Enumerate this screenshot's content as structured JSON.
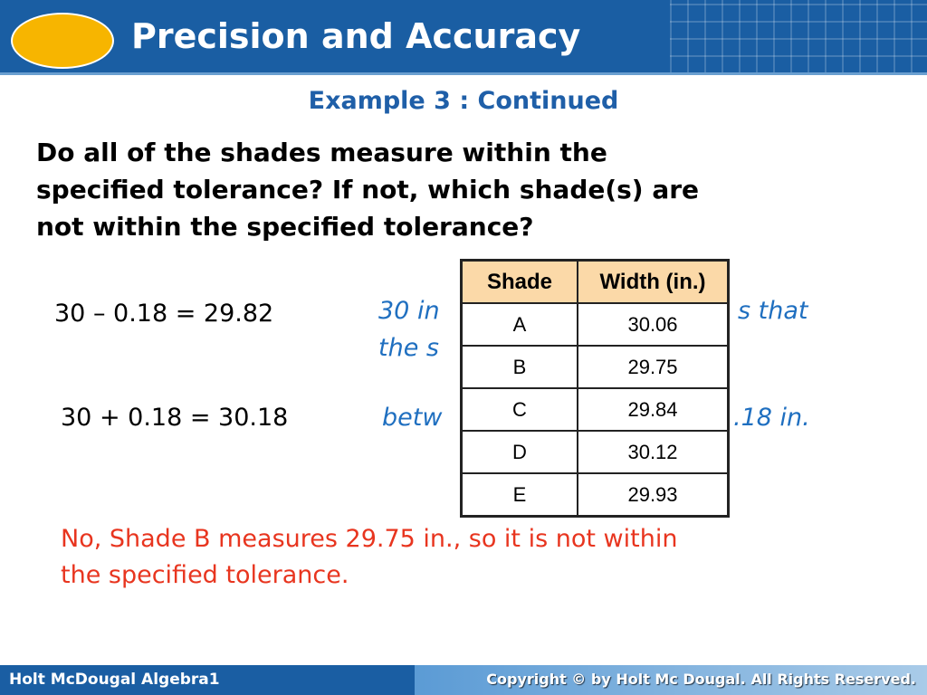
{
  "header": {
    "title": "Precision and Accuracy"
  },
  "subtitle": "Example 3 : Continued",
  "question": [
    "Do all of the shades measure within the",
    "specified tolerance? If not, which shade(s) are",
    "not within the specified tolerance?"
  ],
  "equations": [
    "30 – 0.18 = 29.82",
    "30 + 0.18 = 30.18"
  ],
  "notes": {
    "line1_left": "30 in",
    "line1_right": "s that",
    "line2_left": "the s",
    "line3_left": "betw",
    "line3_right": ".18 in."
  },
  "table": {
    "headers": [
      "Shade",
      "Width (in.)"
    ],
    "rows": [
      [
        "A",
        "30.06"
      ],
      [
        "B",
        "29.75"
      ],
      [
        "C",
        "29.84"
      ],
      [
        "D",
        "30.12"
      ],
      [
        "E",
        "29.93"
      ]
    ]
  },
  "answer": [
    "No, Shade B measures 29.75 in., so it is not within",
    "the specified tolerance."
  ],
  "footer": {
    "left": "Holt McDougal Algebra1",
    "right": "Copyright © by Holt Mc Dougal. All Rights Reserved."
  }
}
